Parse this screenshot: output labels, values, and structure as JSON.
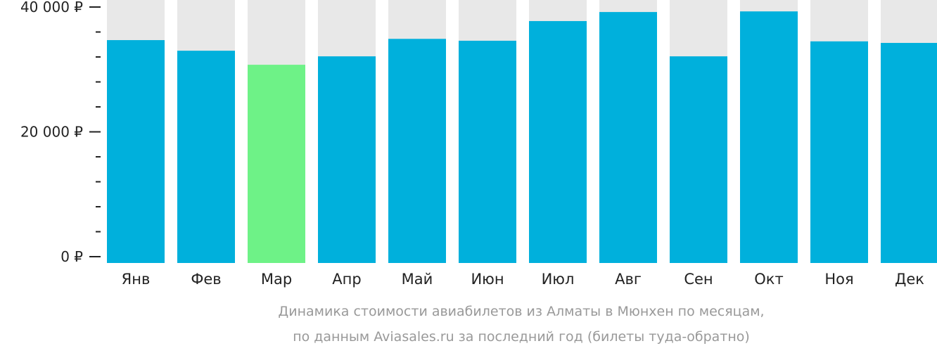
{
  "chart_data": {
    "type": "bar",
    "categories": [
      "Янв",
      "Фев",
      "Мар",
      "Апр",
      "Май",
      "Июн",
      "Июл",
      "Авг",
      "Сен",
      "Окт",
      "Ноя",
      "Дек"
    ],
    "values": [
      34700,
      33000,
      30750,
      32100,
      34900,
      34600,
      37750,
      39200,
      32100,
      39300,
      34500,
      34250
    ],
    "highlight_index": 2,
    "ylim": [
      0,
      40000
    ],
    "yticks": [
      {
        "value": 0,
        "label": "0 ₽"
      },
      {
        "value": 20000,
        "label": "20 000 ₽"
      },
      {
        "value": 40000,
        "label": "40 000 ₽"
      }
    ],
    "minor_ticks": [
      4000,
      8000,
      12000,
      16000,
      24000,
      28000,
      32000,
      36000
    ],
    "colors": {
      "bar": "#00b0dc",
      "highlight": "#6ef287",
      "background": "#e8e8e8",
      "text": "#222222",
      "caption": "#999999"
    },
    "title_lines": [
      "Динамика стоимости авиабилетов из Алматы в Мюнхен по месяцам,",
      "по данным Aviasales.ru за последний год (билеты туда-обратно)"
    ]
  }
}
